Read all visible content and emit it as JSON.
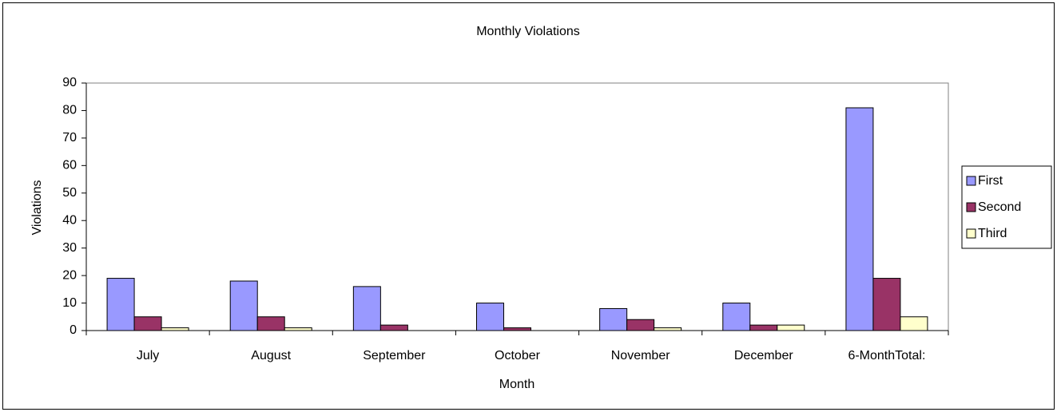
{
  "chart_data": {
    "type": "bar",
    "title": "Monthly Violations",
    "x_label": "Month",
    "y_label": "Violations",
    "categories": [
      "July",
      "August",
      "September",
      "October",
      "November",
      "December",
      "6-MonthTotal:"
    ],
    "series": [
      {
        "name": "First",
        "color": "#9999ff",
        "values": [
          19,
          18,
          16,
          10,
          8,
          10,
          81
        ]
      },
      {
        "name": "Second",
        "color": "#993366",
        "values": [
          5,
          5,
          2,
          1,
          4,
          2,
          19
        ]
      },
      {
        "name": "Third",
        "color": "#ffffcc",
        "values": [
          1,
          1,
          0,
          0,
          1,
          2,
          5
        ]
      }
    ],
    "ylim": [
      0,
      90
    ],
    "yticks": [
      0,
      10,
      20,
      30,
      40,
      50,
      60,
      70,
      80,
      90
    ],
    "grid": false,
    "legend": "right"
  }
}
